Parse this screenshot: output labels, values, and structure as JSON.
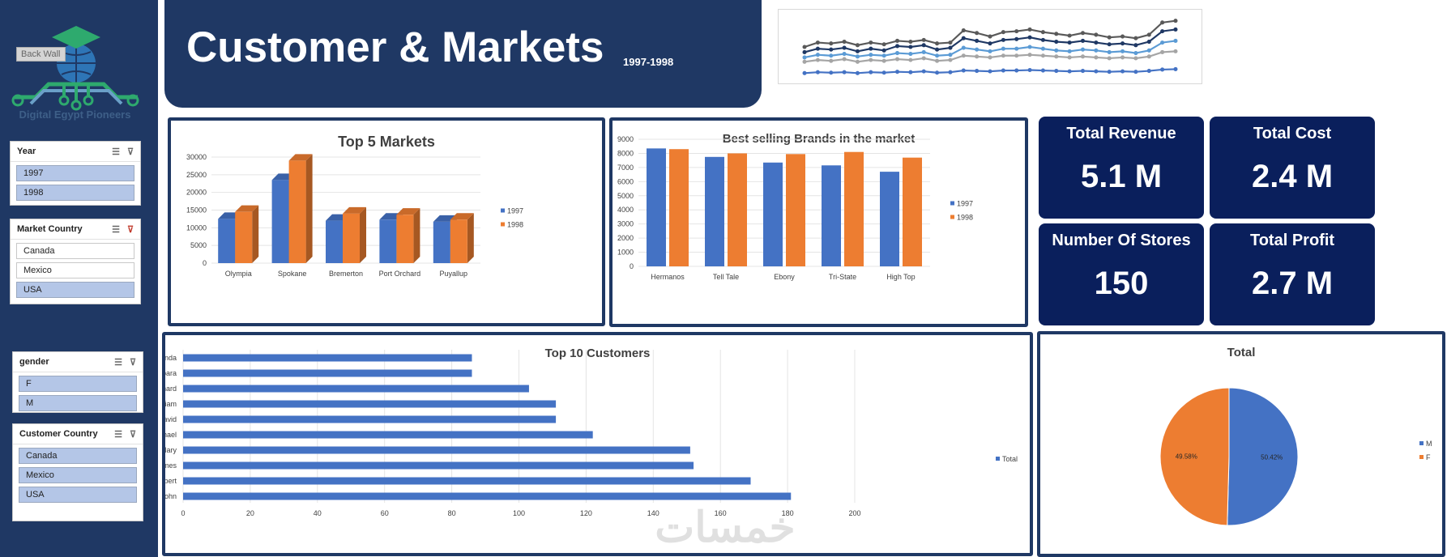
{
  "logo": {
    "text": "Digital Egypt Pioneers",
    "back_wall": "Back Wall"
  },
  "header": {
    "title": "Customer & Markets",
    "years": "1997-1998"
  },
  "slicers": {
    "year": {
      "title": "Year",
      "items": [
        {
          "label": "1997",
          "selected": true
        },
        {
          "label": "1998",
          "selected": true
        }
      ]
    },
    "market_country": {
      "title": "Market Country",
      "items": [
        {
          "label": "Canada",
          "selected": false
        },
        {
          "label": "Mexico",
          "selected": false
        },
        {
          "label": "USA",
          "selected": true
        }
      ]
    },
    "gender": {
      "title": "gender",
      "items": [
        {
          "label": "F",
          "selected": true
        },
        {
          "label": "M",
          "selected": true
        }
      ]
    },
    "customer_country": {
      "title": "Customer Country",
      "items": [
        {
          "label": "Canada",
          "selected": true
        },
        {
          "label": "Mexico",
          "selected": true
        },
        {
          "label": "USA",
          "selected": true
        }
      ]
    }
  },
  "kpis": {
    "total_revenue": {
      "label": "Total Revenue",
      "value": "5.1 M"
    },
    "total_cost": {
      "label": "Total Cost",
      "value": "2.4 M"
    },
    "number_of_stores": {
      "label": "Number Of Stores",
      "value": "150"
    },
    "total_profit": {
      "label": "Total Profit",
      "value": "2.7 M"
    }
  },
  "colors": {
    "navy": "#1f3864",
    "kpi_bg": "#0a1f5c",
    "blue": "#4472c4",
    "orange": "#ed7d31"
  },
  "watermark": "خمسات",
  "chart_data": [
    {
      "id": "top5markets",
      "type": "bar",
      "title": "Top 5 Markets",
      "categories": [
        "Olympia",
        "Spokane",
        "Bremerton",
        "Port Orchard",
        "Puyallup"
      ],
      "series": [
        {
          "name": "1997",
          "values": [
            12500,
            23500,
            12000,
            12300,
            11700
          ]
        },
        {
          "name": "1998",
          "values": [
            14500,
            29000,
            14000,
            13700,
            12300
          ]
        }
      ],
      "yticks": [
        "0",
        "5000",
        "10000",
        "15000",
        "20000",
        "25000",
        "30000"
      ],
      "ylim": [
        0,
        30000
      ],
      "legend": "right"
    },
    {
      "id": "brands",
      "type": "bar",
      "title": "Best selling Brands in the market",
      "categories": [
        "Hermanos",
        "Tell Tale",
        "Ebony",
        "Tri-State",
        "High Top"
      ],
      "series": [
        {
          "name": "1997",
          "values": [
            8350,
            7750,
            7350,
            7150,
            6700
          ]
        },
        {
          "name": "1998",
          "values": [
            8300,
            8000,
            7950,
            8100,
            7700
          ]
        }
      ],
      "yticks": [
        "0",
        "1000",
        "2000",
        "3000",
        "4000",
        "5000",
        "6000",
        "7000",
        "8000",
        "9000"
      ],
      "ylim": [
        0,
        9000
      ],
      "legend": "right"
    },
    {
      "id": "top10customers",
      "type": "bar",
      "title": "Top 10 Customers",
      "orientation": "horizontal",
      "categories": [
        "Linda",
        "Barbara",
        "Richard",
        "William",
        "David",
        "Michael",
        "Mary",
        "James",
        "Robert",
        "John"
      ],
      "series": [
        {
          "name": "Total",
          "values": [
            86,
            86,
            103,
            111,
            111,
            122,
            151,
            152,
            169,
            181
          ]
        }
      ],
      "xticks": [
        "0",
        "20",
        "40",
        "60",
        "80",
        "100",
        "120",
        "140",
        "160",
        "180",
        "200"
      ],
      "xlim": [
        0,
        200
      ],
      "legend": "right"
    },
    {
      "id": "gender_pie",
      "type": "pie",
      "title": "Total",
      "slices": [
        {
          "name": "M",
          "value": 50.42,
          "label": "50.42%"
        },
        {
          "name": "F",
          "value": 49.58,
          "label": "49.58%"
        }
      ],
      "legend": "right"
    },
    {
      "id": "sparkline",
      "type": "line",
      "title": "",
      "series": [
        {
          "name": "s1",
          "values": [
            4,
            4.5,
            4.4,
            4.6,
            4.2,
            4.5,
            4.3,
            4.7,
            4.6,
            4.8,
            4.4,
            4.5,
            5.9,
            5.6,
            5.2,
            5.7,
            5.8,
            6.0,
            5.7,
            5.5,
            5.3,
            5.6,
            5.4,
            5.1,
            5.2,
            5.0,
            5.4,
            6.8,
            7.0
          ]
        },
        {
          "name": "s2",
          "values": [
            3.4,
            3.8,
            3.7,
            3.9,
            3.5,
            3.8,
            3.6,
            4.1,
            4.0,
            4.2,
            3.7,
            3.9,
            5.0,
            4.7,
            4.4,
            4.8,
            4.9,
            5.1,
            4.8,
            4.6,
            4.5,
            4.7,
            4.5,
            4.3,
            4.4,
            4.2,
            4.6,
            5.8,
            6.0
          ]
        },
        {
          "name": "s3",
          "values": [
            2.8,
            3.1,
            3.0,
            3.2,
            2.9,
            3.1,
            3.0,
            3.3,
            3.2,
            3.4,
            3.0,
            3.1,
            3.9,
            3.7,
            3.5,
            3.8,
            3.8,
            4.0,
            3.8,
            3.6,
            3.5,
            3.7,
            3.6,
            3.4,
            3.5,
            3.3,
            3.6,
            4.5,
            4.7
          ]
        },
        {
          "name": "s4",
          "values": [
            2.3,
            2.5,
            2.4,
            2.6,
            2.3,
            2.5,
            2.4,
            2.6,
            2.5,
            2.7,
            2.4,
            2.5,
            3.0,
            2.9,
            2.8,
            3.0,
            3.0,
            3.1,
            3.0,
            2.9,
            2.8,
            2.9,
            2.8,
            2.7,
            2.8,
            2.7,
            2.9,
            3.4,
            3.5
          ]
        },
        {
          "name": "s5",
          "values": [
            1.0,
            1.1,
            1.05,
            1.1,
            1.0,
            1.1,
            1.05,
            1.15,
            1.1,
            1.2,
            1.05,
            1.1,
            1.3,
            1.25,
            1.2,
            1.3,
            1.3,
            1.35,
            1.3,
            1.25,
            1.2,
            1.25,
            1.2,
            1.15,
            1.2,
            1.15,
            1.25,
            1.4,
            1.45
          ]
        }
      ],
      "series_colors": [
        "#595959",
        "#1f3864",
        "#5b9bd5",
        "#a5a5a5",
        "#4472c4"
      ]
    }
  ]
}
